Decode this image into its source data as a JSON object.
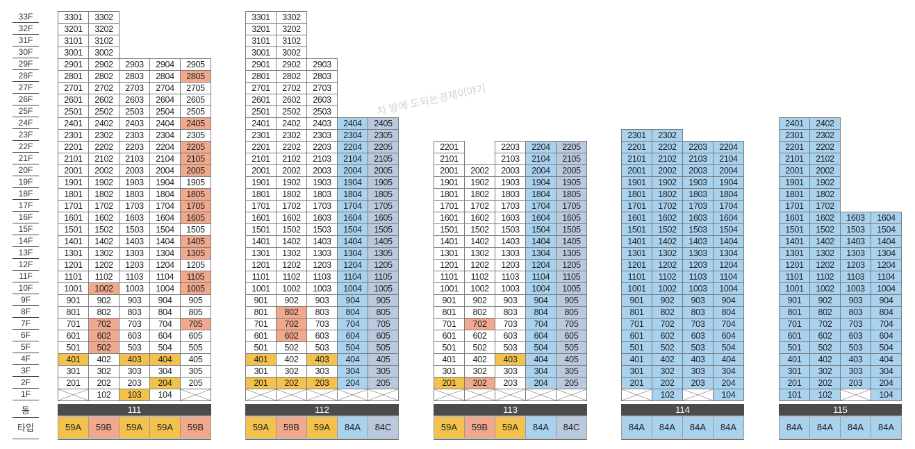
{
  "floors": [
    "33F",
    "32F",
    "31F",
    "30F",
    "29F",
    "28F",
    "27F",
    "26F",
    "25F",
    "24F",
    "23F",
    "22F",
    "21F",
    "20F",
    "19F",
    "18F",
    "17F",
    "16F",
    "15F",
    "14F",
    "13F",
    "12F",
    "11F",
    "10F",
    "9F",
    "8F",
    "7F",
    "6F",
    "5F",
    "4F",
    "3F",
    "2F",
    "1F"
  ],
  "footer_labels": {
    "dong": "동",
    "type": "타입"
  },
  "watermark": "치 방에 도되는경제이야기",
  "colors": {
    "w": "#ffffff",
    "b": "#a9d2ee",
    "o": "#f0a98d",
    "y": "#f3c24d",
    "g": "#b9c9de"
  },
  "buildings": [
    {
      "dong": "111",
      "types": [
        "59A",
        "59B",
        "59A",
        "59A",
        "59B"
      ],
      "grid": [
        [
          "3301:w",
          "3302:w",
          null,
          null,
          null
        ],
        [
          "3201:w",
          "3202:w",
          null,
          null,
          null
        ],
        [
          "3101:w",
          "3102:w",
          null,
          null,
          null
        ],
        [
          "3001:w",
          "3002:w",
          null,
          null,
          null
        ],
        [
          "2901:w",
          "2902:w",
          "2903:w",
          "2904:w",
          "2905:w"
        ],
        [
          "2801:w",
          "2802:w",
          "2803:w",
          "2804:w",
          "2805:o"
        ],
        [
          "2701:w",
          "2702:w",
          "2703:w",
          "2704:w",
          "2705:w"
        ],
        [
          "2601:w",
          "2602:w",
          "2603:w",
          "2604:w",
          "2605:w"
        ],
        [
          "2501:w",
          "2502:w",
          "2503:w",
          "2504:w",
          "2505:w"
        ],
        [
          "2401:w",
          "2402:w",
          "2403:w",
          "2404:w",
          "2405:o"
        ],
        [
          "2301:w",
          "2302:w",
          "2303:w",
          "2304:w",
          "2305:w"
        ],
        [
          "2201:w",
          "2202:w",
          "2203:w",
          "2204:w",
          "2205:o"
        ],
        [
          "2101:w",
          "2102:w",
          "2103:w",
          "2104:w",
          "2105:o"
        ],
        [
          "2001:w",
          "2002:w",
          "2003:w",
          "2004:w",
          "2005:o"
        ],
        [
          "1901:w",
          "1902:w",
          "1903:w",
          "1904:w",
          "1905:w"
        ],
        [
          "1801:w",
          "1802:w",
          "1803:w",
          "1804:w",
          "1805:o"
        ],
        [
          "1701:w",
          "1702:w",
          "1703:w",
          "1704:w",
          "1705:o"
        ],
        [
          "1601:w",
          "1602:w",
          "1603:w",
          "1604:w",
          "1605:o"
        ],
        [
          "1501:w",
          "1502:w",
          "1503:w",
          "1504:w",
          "1505:w"
        ],
        [
          "1401:w",
          "1402:w",
          "1403:w",
          "1404:w",
          "1405:o"
        ],
        [
          "1301:w",
          "1302:w",
          "1303:w",
          "1304:w",
          "1305:o"
        ],
        [
          "1201:w",
          "1202:w",
          "1203:w",
          "1204:w",
          "1205:w"
        ],
        [
          "1101:w",
          "1102:w",
          "1103:w",
          "1104:w",
          "1105:o"
        ],
        [
          "1001:w",
          "1002:o",
          "1003:w",
          "1004:w",
          "1005:o"
        ],
        [
          "901:w",
          "902:w",
          "903:w",
          "904:w",
          "905:w"
        ],
        [
          "801:w",
          "802:w",
          "803:w",
          "804:w",
          "805:w"
        ],
        [
          "701:w",
          "702:o",
          "703:w",
          "704:w",
          "705:o"
        ],
        [
          "601:w",
          "602:o",
          "603:w",
          "604:w",
          "605:w"
        ],
        [
          "501:w",
          "502:o",
          "503:w",
          "504:w",
          "505:w"
        ],
        [
          "401:y",
          "402:w",
          "403:y",
          "404:y",
          "405:w"
        ],
        [
          "301:w",
          "302:w",
          "303:w",
          "304:w",
          "305:w"
        ],
        [
          "201:w",
          "202:w",
          "203:w",
          "204:y",
          "205:w"
        ],
        [
          "x",
          "102:w",
          "103:y",
          "104:w",
          "x"
        ]
      ]
    },
    {
      "dong": "112",
      "types": [
        "59A",
        "59B",
        "59A",
        "84A",
        "84C"
      ],
      "grid": [
        [
          "3301:w",
          "3302:w",
          null,
          null,
          null
        ],
        [
          "3201:w",
          "3202:w",
          null,
          null,
          null
        ],
        [
          "3101:w",
          "3102:w",
          null,
          null,
          null
        ],
        [
          "3001:w",
          "3002:w",
          null,
          null,
          null
        ],
        [
          "2901:w",
          "2902:w",
          "2903:w",
          null,
          null
        ],
        [
          "2801:w",
          "2802:w",
          "2803:w",
          null,
          null
        ],
        [
          "2701:w",
          "2702:w",
          "2703:w",
          null,
          null
        ],
        [
          "2601:w",
          "2602:w",
          "2603:w",
          null,
          null
        ],
        [
          "2501:w",
          "2502:w",
          "2503:w",
          null,
          null
        ],
        [
          "2401:w",
          "2402:w",
          "2403:w",
          "2404:b",
          "2405:g"
        ],
        [
          "2301:w",
          "2302:w",
          "2303:w",
          "2304:b",
          "2305:g"
        ],
        [
          "2201:w",
          "2202:w",
          "2203:w",
          "2204:b",
          "2205:g"
        ],
        [
          "2101:w",
          "2102:w",
          "2103:w",
          "2104:b",
          "2105:g"
        ],
        [
          "2001:w",
          "2002:w",
          "2003:w",
          "2004:b",
          "2005:g"
        ],
        [
          "1901:w",
          "1902:w",
          "1903:w",
          "1904:b",
          "1905:g"
        ],
        [
          "1801:w",
          "1802:w",
          "1803:w",
          "1804:b",
          "1805:g"
        ],
        [
          "1701:w",
          "1702:w",
          "1703:w",
          "1704:b",
          "1705:g"
        ],
        [
          "1601:w",
          "1602:w",
          "1603:w",
          "1604:b",
          "1605:g"
        ],
        [
          "1501:w",
          "1502:w",
          "1503:w",
          "1504:b",
          "1505:g"
        ],
        [
          "1401:w",
          "1402:w",
          "1403:w",
          "1404:b",
          "1405:g"
        ],
        [
          "1301:w",
          "1302:w",
          "1303:w",
          "1304:b",
          "1305:g"
        ],
        [
          "1201:w",
          "1202:w",
          "1203:w",
          "1204:b",
          "1205:g"
        ],
        [
          "1101:w",
          "1102:w",
          "1103:w",
          "1104:b",
          "1105:g"
        ],
        [
          "1001:w",
          "1002:w",
          "1003:w",
          "1004:b",
          "1005:g"
        ],
        [
          "901:w",
          "902:w",
          "903:w",
          "904:b",
          "905:g"
        ],
        [
          "801:w",
          "802:o",
          "803:w",
          "804:b",
          "805:g"
        ],
        [
          "701:w",
          "702:o",
          "703:w",
          "704:b",
          "705:g"
        ],
        [
          "601:w",
          "602:o",
          "603:w",
          "604:b",
          "605:g"
        ],
        [
          "501:w",
          "502:w",
          "503:w",
          "504:b",
          "505:g"
        ],
        [
          "401:y",
          "402:w",
          "403:y",
          "404:b",
          "405:g"
        ],
        [
          "301:w",
          "302:w",
          "303:w",
          "304:b",
          "305:g"
        ],
        [
          "201:y",
          "202:y",
          "203:y",
          "204:b",
          "205:g"
        ],
        [
          "x",
          "x",
          "x",
          "x",
          "x"
        ]
      ]
    },
    {
      "dong": "113",
      "types": [
        "59A",
        "59B",
        "59A",
        "84A",
        "84C"
      ],
      "grid": [
        [
          null,
          null,
          null,
          null,
          null
        ],
        [
          null,
          null,
          null,
          null,
          null
        ],
        [
          null,
          null,
          null,
          null,
          null
        ],
        [
          null,
          null,
          null,
          null,
          null
        ],
        [
          null,
          null,
          null,
          null,
          null
        ],
        [
          null,
          null,
          null,
          null,
          null
        ],
        [
          null,
          null,
          null,
          null,
          null
        ],
        [
          null,
          null,
          null,
          null,
          null
        ],
        [
          null,
          null,
          null,
          null,
          null
        ],
        [
          null,
          null,
          null,
          null,
          null
        ],
        [
          null,
          null,
          null,
          null,
          null
        ],
        [
          "2201:w",
          null,
          "2203:w",
          "2204:b",
          "2205:g"
        ],
        [
          "2101:w",
          null,
          "2103:w",
          "2104:b",
          "2105:g"
        ],
        [
          "2001:w",
          "2002:w",
          "2003:w",
          "2004:b",
          "2005:g"
        ],
        [
          "1901:w",
          "1902:w",
          "1903:w",
          "1904:b",
          "1905:g"
        ],
        [
          "1801:w",
          "1802:w",
          "1803:w",
          "1804:b",
          "1805:g"
        ],
        [
          "1701:w",
          "1702:w",
          "1703:w",
          "1704:b",
          "1705:g"
        ],
        [
          "1601:w",
          "1602:w",
          "1603:w",
          "1604:b",
          "1605:g"
        ],
        [
          "1501:w",
          "1502:w",
          "1503:w",
          "1504:b",
          "1505:g"
        ],
        [
          "1401:w",
          "1402:w",
          "1403:w",
          "1404:b",
          "1405:g"
        ],
        [
          "1301:w",
          "1302:w",
          "1303:w",
          "1304:b",
          "1305:g"
        ],
        [
          "1201:w",
          "1202:w",
          "1203:w",
          "1204:b",
          "1205:g"
        ],
        [
          "1101:w",
          "1102:w",
          "1103:w",
          "1104:b",
          "1105:g"
        ],
        [
          "1001:w",
          "1002:w",
          "1003:w",
          "1004:b",
          "1005:g"
        ],
        [
          "901:w",
          "902:w",
          "903:w",
          "904:b",
          "905:g"
        ],
        [
          "801:w",
          "802:w",
          "803:w",
          "804:b",
          "805:g"
        ],
        [
          "701:w",
          "702:o",
          "703:w",
          "704:b",
          "705:g"
        ],
        [
          "601:w",
          "602:w",
          "603:w",
          "604:b",
          "605:g"
        ],
        [
          "501:w",
          "502:w",
          "503:w",
          "504:b",
          "505:g"
        ],
        [
          "401:w",
          "402:w",
          "403:y",
          "404:b",
          "405:g"
        ],
        [
          "301:w",
          "302:w",
          "303:w",
          "304:b",
          "305:g"
        ],
        [
          "201:y",
          "202:o",
          "203:w",
          "204:b",
          "205:g"
        ],
        [
          "x",
          "x",
          "x",
          "x",
          "x"
        ]
      ]
    },
    {
      "dong": "114",
      "types": [
        "84A",
        "84A",
        "84A",
        "84A"
      ],
      "grid": [
        [
          null,
          null,
          null,
          null
        ],
        [
          null,
          null,
          null,
          null
        ],
        [
          null,
          null,
          null,
          null
        ],
        [
          null,
          null,
          null,
          null
        ],
        [
          null,
          null,
          null,
          null
        ],
        [
          null,
          null,
          null,
          null
        ],
        [
          null,
          null,
          null,
          null
        ],
        [
          null,
          null,
          null,
          null
        ],
        [
          null,
          null,
          null,
          null
        ],
        [
          null,
          null,
          null,
          null
        ],
        [
          "2301:b",
          "2302:b",
          null,
          null
        ],
        [
          "2201:b",
          "2202:b",
          "2203:b",
          "2204:b"
        ],
        [
          "2101:b",
          "2102:b",
          "2103:b",
          "2104:b"
        ],
        [
          "2001:b",
          "2002:b",
          "2003:b",
          "2004:b"
        ],
        [
          "1901:b",
          "1902:b",
          "1903:b",
          "1904:b"
        ],
        [
          "1801:b",
          "1802:b",
          "1803:b",
          "1804:b"
        ],
        [
          "1701:b",
          "1702:b",
          "1703:b",
          "1704:b"
        ],
        [
          "1601:b",
          "1602:b",
          "1603:b",
          "1604:b"
        ],
        [
          "1501:b",
          "1502:b",
          "1503:b",
          "1504:b"
        ],
        [
          "1401:b",
          "1402:b",
          "1403:b",
          "1404:b"
        ],
        [
          "1301:b",
          "1302:b",
          "1303:b",
          "1304:b"
        ],
        [
          "1201:b",
          "1202:b",
          "1203:b",
          "1204:b"
        ],
        [
          "1101:b",
          "1102:b",
          "1103:b",
          "1104:b"
        ],
        [
          "1001:b",
          "1002:b",
          "1003:b",
          "1004:b"
        ],
        [
          "901:b",
          "902:b",
          "903:b",
          "904:b"
        ],
        [
          "801:b",
          "802:b",
          "803:b",
          "804:b"
        ],
        [
          "701:b",
          "702:b",
          "703:b",
          "704:b"
        ],
        [
          "601:b",
          "602:b",
          "603:b",
          "604:b"
        ],
        [
          "501:b",
          "502:b",
          "503:b",
          "504:b"
        ],
        [
          "401:b",
          "402:b",
          "403:b",
          "404:b"
        ],
        [
          "301:b",
          "302:b",
          "303:b",
          "304:b"
        ],
        [
          "201:b",
          "202:b",
          "203:b",
          "204:b"
        ],
        [
          "x",
          "102:b",
          "x",
          "104:b"
        ]
      ]
    },
    {
      "dong": "115",
      "types": [
        "84A",
        "84A",
        "84A",
        "84A"
      ],
      "grid": [
        [
          null,
          null,
          null,
          null
        ],
        [
          null,
          null,
          null,
          null
        ],
        [
          null,
          null,
          null,
          null
        ],
        [
          null,
          null,
          null,
          null
        ],
        [
          null,
          null,
          null,
          null
        ],
        [
          null,
          null,
          null,
          null
        ],
        [
          null,
          null,
          null,
          null
        ],
        [
          null,
          null,
          null,
          null
        ],
        [
          null,
          null,
          null,
          null
        ],
        [
          "2401:b",
          "2402:b",
          null,
          null
        ],
        [
          "2301:b",
          "2302:b",
          null,
          null
        ],
        [
          "2201:b",
          "2202:b",
          null,
          null
        ],
        [
          "2101:b",
          "2102:b",
          null,
          null
        ],
        [
          "2001:b",
          "2002:b",
          null,
          null
        ],
        [
          "1901:b",
          "1902:b",
          null,
          null
        ],
        [
          "1801:b",
          "1802:b",
          null,
          null
        ],
        [
          "1701:b",
          "1702:b",
          null,
          null
        ],
        [
          "1601:b",
          "1602:b",
          "1603:b",
          "1604:b"
        ],
        [
          "1501:b",
          "1502:b",
          "1503:b",
          "1504:b"
        ],
        [
          "1401:b",
          "1402:b",
          "1403:b",
          "1404:b"
        ],
        [
          "1301:b",
          "1302:b",
          "1303:b",
          "1304:b"
        ],
        [
          "1201:b",
          "1202:b",
          "1203:b",
          "1204:b"
        ],
        [
          "1101:b",
          "1102:b",
          "1103:b",
          "1104:b"
        ],
        [
          "1001:b",
          "1002:b",
          "1003:b",
          "1004:b"
        ],
        [
          "901:b",
          "902:b",
          "903:b",
          "904:b"
        ],
        [
          "801:b",
          "802:b",
          "803:b",
          "804:b"
        ],
        [
          "701:b",
          "702:b",
          "703:b",
          "704:b"
        ],
        [
          "601:b",
          "602:b",
          "603:b",
          "604:b"
        ],
        [
          "501:b",
          "502:b",
          "503:b",
          "504:b"
        ],
        [
          "401:b",
          "402:b",
          "403:b",
          "404:b"
        ],
        [
          "301:b",
          "302:b",
          "303:b",
          "304:b"
        ],
        [
          "201:b",
          "202:b",
          "203:b",
          "204:b"
        ],
        [
          "101:b",
          "102:b",
          "x",
          "104:b"
        ]
      ]
    }
  ]
}
